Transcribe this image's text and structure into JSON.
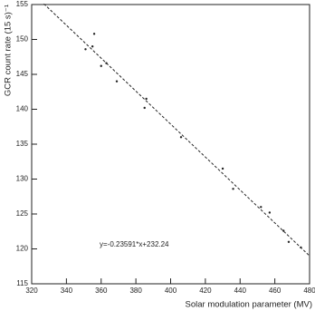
{
  "chart_data": {
    "type": "scatter",
    "x_label": "Solar modulation parameter (MV)",
    "y_label": "GCR count rate (15 s)⁻¹",
    "annotation": "y=-0.23591*x+232.24",
    "x": [
      351,
      355,
      356,
      360,
      363,
      369,
      385,
      386,
      406,
      430,
      436,
      452,
      457,
      465,
      468,
      475
    ],
    "values": [
      148.6,
      149,
      150.8,
      146.2,
      146.6,
      144,
      140.2,
      141.5,
      136,
      131.5,
      128.6,
      126,
      125.2,
      122.6,
      121,
      120.2
    ],
    "color": "#222222",
    "fit": {
      "x": [
        327,
        480
      ],
      "y": [
        155.1,
        119.0
      ],
      "color": "#222222"
    },
    "xlim": [
      320,
      480
    ],
    "xticks": [
      320,
      340,
      360,
      380,
      400,
      420,
      440,
      460,
      480
    ],
    "ylim": [
      115,
      155
    ],
    "yticks": [
      115,
      120,
      125,
      130,
      135,
      140,
      145,
      150,
      155
    ]
  }
}
